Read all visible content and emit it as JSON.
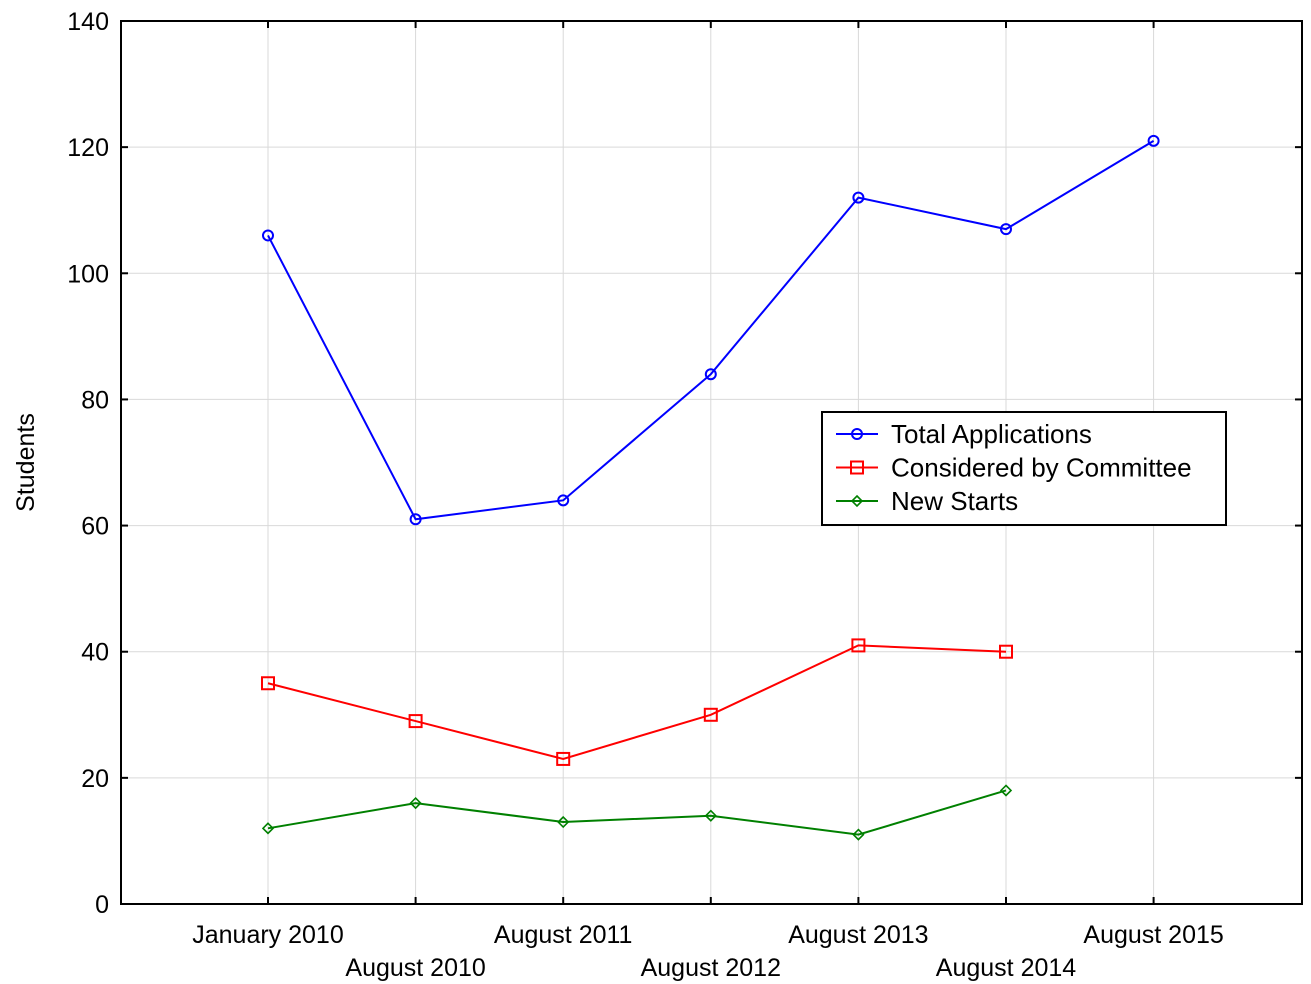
{
  "chart_data": {
    "type": "line",
    "title": "",
    "xlabel": "",
    "ylabel": "Students",
    "ylim": [
      0,
      140
    ],
    "yticks": [
      0,
      20,
      40,
      60,
      80,
      100,
      120,
      140
    ],
    "grid": true,
    "legend_position": "center-right",
    "categories": [
      "January 2010",
      "August 2010",
      "August 2011",
      "August 2012",
      "August 2013",
      "August 2014",
      "August 2015"
    ],
    "series": [
      {
        "name": "Total Applications",
        "color": "#0000ff",
        "marker": "circle",
        "values": [
          106,
          61,
          64,
          84,
          112,
          107,
          121
        ]
      },
      {
        "name": "Considered by Committee",
        "color": "#ff0000",
        "marker": "square",
        "values": [
          35,
          29,
          23,
          30,
          41,
          40,
          null
        ]
      },
      {
        "name": "New Starts",
        "color": "#008000",
        "marker": "diamond",
        "values": [
          12,
          16,
          13,
          14,
          11,
          18,
          null
        ]
      }
    ]
  }
}
